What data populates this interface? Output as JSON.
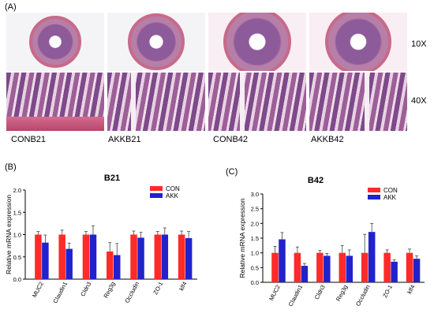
{
  "panel_a": {
    "letter": "(A)",
    "magnifications": [
      "10X",
      "40X"
    ],
    "captions": [
      "CONB21",
      "AKKB21",
      "CONB42",
      "AKKB42"
    ]
  },
  "panel_b": {
    "letter": "(B)"
  },
  "panel_c": {
    "letter": "(C)"
  },
  "colors": {
    "con": "#ff2a2a",
    "akk": "#2222cc",
    "axis": "#000000"
  },
  "chart_data": [
    {
      "type": "bar",
      "title": "B21",
      "ylabel": "Relative mRNA expression",
      "xlabel": "",
      "ylim": [
        0,
        2.0
      ],
      "yticks": [
        "0.0",
        "0.5",
        "1.0",
        "1.5",
        "2.0"
      ],
      "categories": [
        "MUC2",
        "Claudin1",
        "Cldn3",
        "Reg3g",
        "Occludin",
        "ZO-1",
        "klf4"
      ],
      "series": [
        {
          "name": "CON",
          "values": [
            1.0,
            1.0,
            1.0,
            0.62,
            1.0,
            1.0,
            1.0
          ],
          "errors": [
            0.07,
            0.1,
            0.07,
            0.2,
            0.08,
            0.07,
            0.08
          ]
        },
        {
          "name": "AKK",
          "values": [
            0.82,
            0.68,
            1.0,
            0.54,
            0.93,
            1.0,
            0.92
          ],
          "errors": [
            0.17,
            0.13,
            0.2,
            0.26,
            0.12,
            0.15,
            0.15
          ]
        }
      ],
      "legend_position": "top-right"
    },
    {
      "type": "bar",
      "title": "B42",
      "ylabel": "Relative mRNA expression",
      "xlabel": "",
      "ylim": [
        0,
        3.0
      ],
      "yticks": [
        "0.0",
        "0.5",
        "1.0",
        "1.5",
        "2.0",
        "2.5",
        "3.0"
      ],
      "categories": [
        "MUC2",
        "Claudin1",
        "Cldn3",
        "Reg3g",
        "Occludin",
        "ZO-1",
        "klf4"
      ],
      "series": [
        {
          "name": "CON",
          "values": [
            1.0,
            1.0,
            1.0,
            1.0,
            1.0,
            1.0,
            1.0
          ],
          "errors": [
            0.22,
            0.2,
            0.08,
            0.25,
            0.63,
            0.1,
            0.13
          ]
        },
        {
          "name": "AKK",
          "values": [
            1.46,
            0.56,
            0.9,
            0.9,
            1.71,
            0.7,
            0.8
          ],
          "errors": [
            0.23,
            0.08,
            0.08,
            0.2,
            0.29,
            0.07,
            0.1
          ]
        }
      ],
      "legend_position": "top-right"
    }
  ]
}
